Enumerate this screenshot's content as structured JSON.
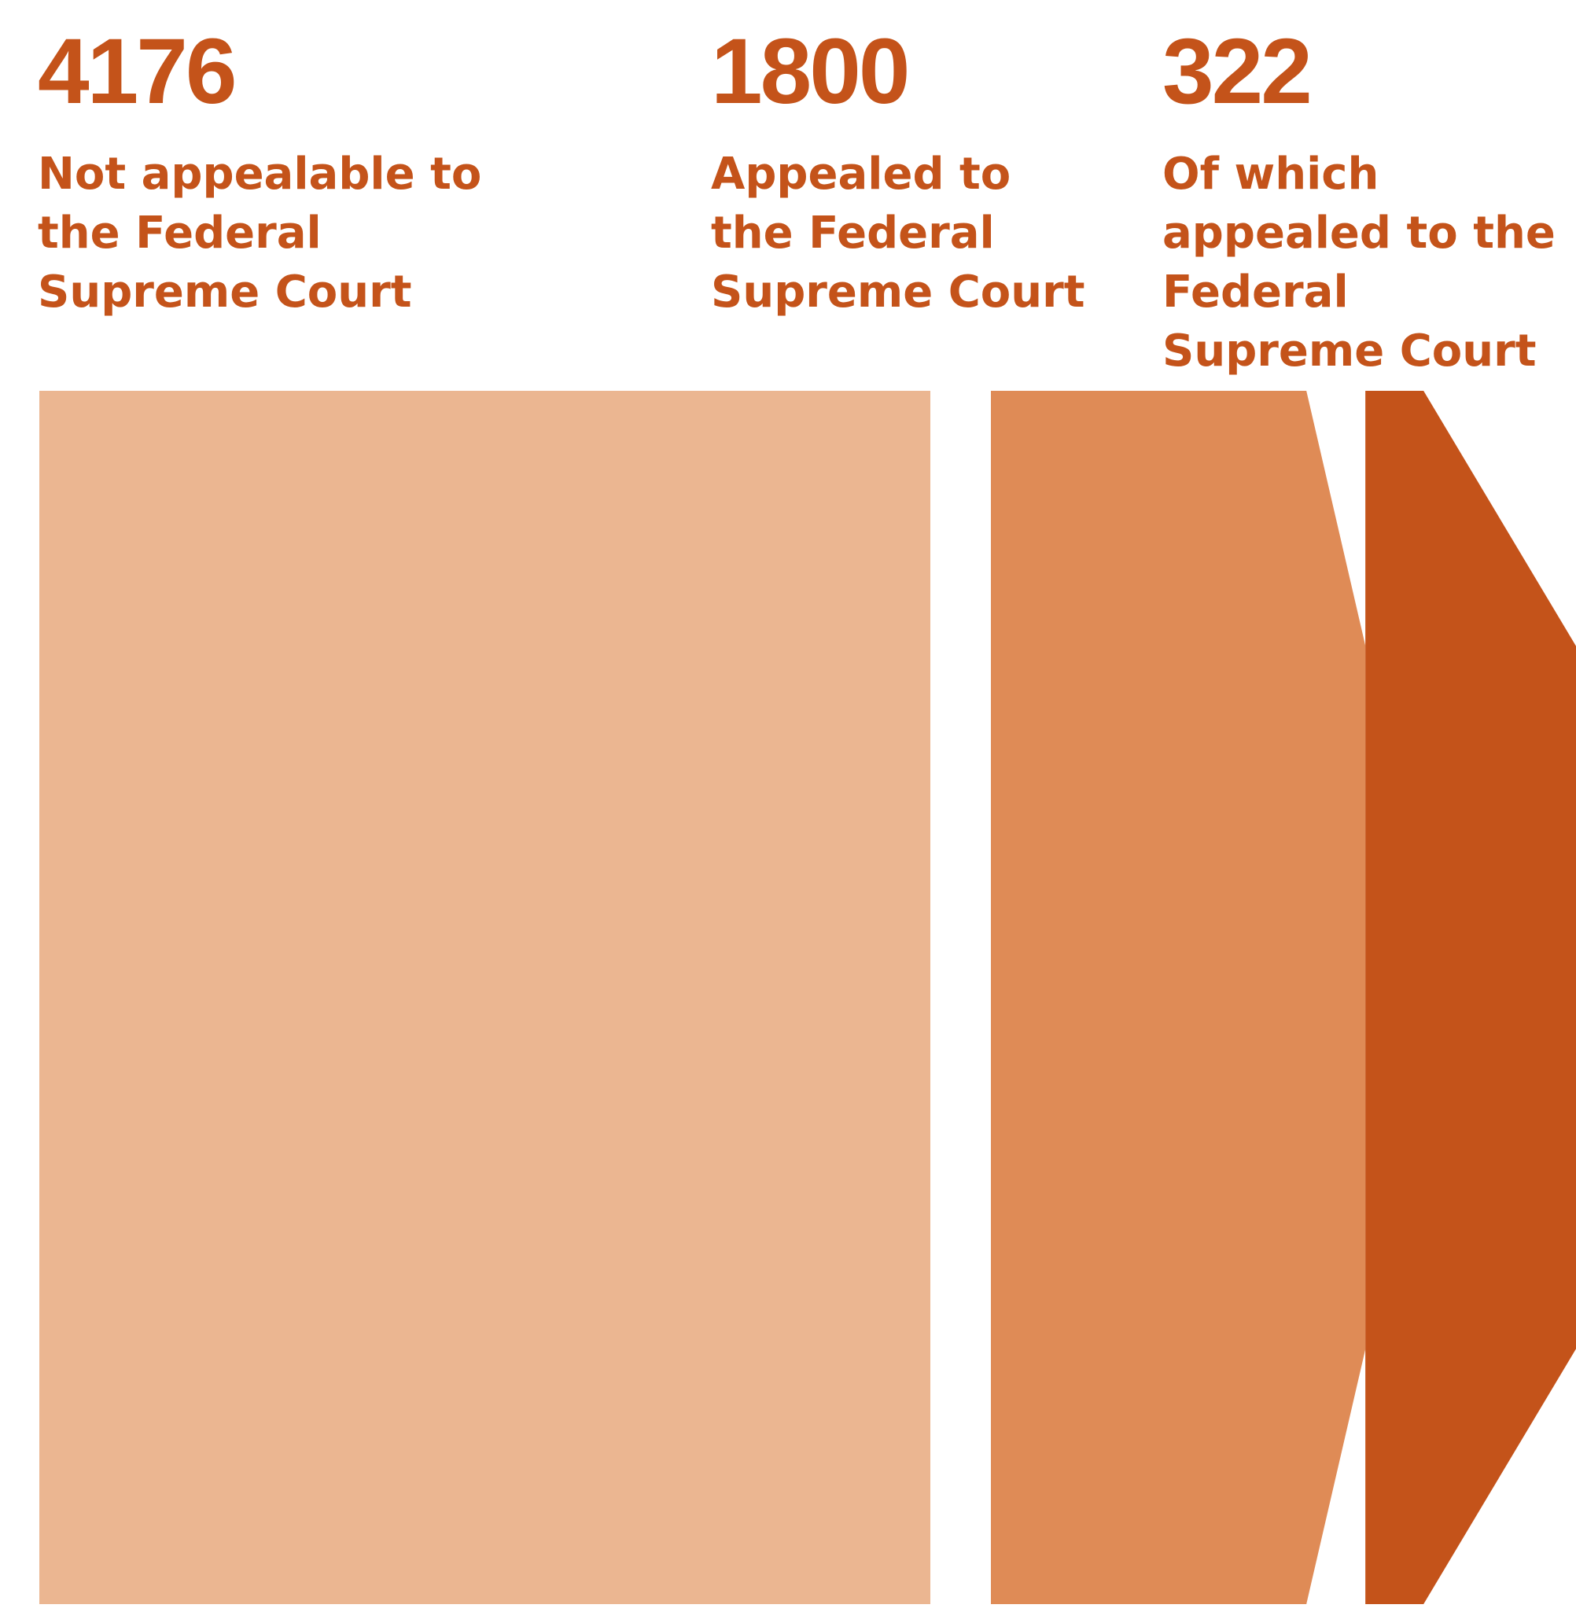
{
  "chart_data": {
    "type": "bar",
    "categories": [
      "Not appealable to the Federal Supreme Court",
      "Appealed to the Federal Supreme Court",
      "Of which appealed to the Federal Supreme Court"
    ],
    "values": [
      4176,
      1800,
      322
    ],
    "title": "",
    "xlabel": "",
    "ylabel": "",
    "labels": [
      {
        "value": "4176",
        "text": "Not appealable to\nthe Federal\nSupreme Court"
      },
      {
        "value": "1800",
        "text": "Appealed to\nthe Federal\nSupreme Court"
      },
      {
        "value": "322",
        "text": "Of which\nappealed to the\nFederal\nSupreme Court"
      }
    ],
    "colors": [
      "#ebb691",
      "#df8b56",
      "#c4531a"
    ],
    "text_color": "#c4531a"
  }
}
